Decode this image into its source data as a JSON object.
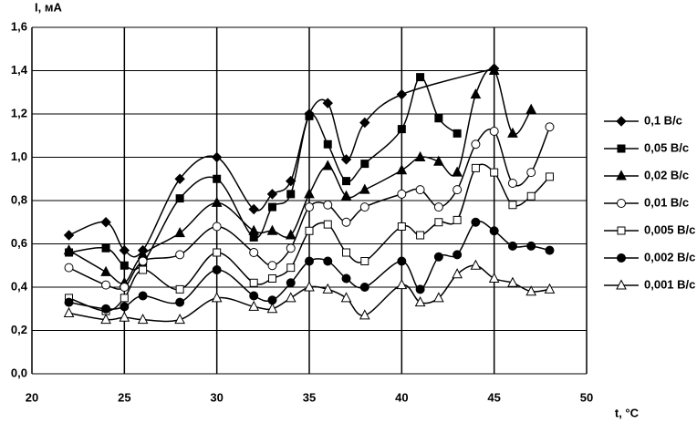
{
  "chart_data": {
    "type": "line",
    "ylabel": "I, мА",
    "xlabel": "t, °C",
    "xlim": [
      20,
      50
    ],
    "xticks": [
      20,
      25,
      30,
      35,
      40,
      45,
      50
    ],
    "ylim": [
      0,
      1.6
    ],
    "yticks": [
      {
        "value": 0,
        "label": "0,0"
      },
      {
        "value": 0.2,
        "label": "0,2"
      },
      {
        "value": 0.4,
        "label": "0,4"
      },
      {
        "value": 0.6,
        "label": "0,6"
      },
      {
        "value": 0.8,
        "label": "0,8"
      },
      {
        "value": 1.0,
        "label": "1,0"
      },
      {
        "value": 1.2,
        "label": "1,2"
      },
      {
        "value": 1.4,
        "label": "1,4"
      },
      {
        "value": 1.6,
        "label": "1,6"
      }
    ],
    "grid": true,
    "smooth": true,
    "legend": "right",
    "series": [
      {
        "name": "0,1 В/с",
        "color": "#000000",
        "marker": "diamond",
        "filled": true,
        "x": [
          22,
          24,
          25,
          26,
          28,
          30,
          32,
          33,
          34,
          35,
          36,
          37,
          38,
          40,
          45
        ],
        "values": [
          0.64,
          0.7,
          0.57,
          0.57,
          0.9,
          1.0,
          0.76,
          0.83,
          0.89,
          1.2,
          1.25,
          0.99,
          1.16,
          1.29,
          1.41
        ]
      },
      {
        "name": "0,05 В/с",
        "color": "#000000",
        "marker": "square",
        "filled": true,
        "x": [
          22,
          24,
          25,
          26,
          28,
          30,
          32,
          33,
          34,
          35,
          36,
          37,
          38,
          40,
          41,
          42,
          43
        ],
        "values": [
          0.56,
          0.58,
          0.5,
          0.51,
          0.81,
          0.9,
          0.63,
          0.77,
          0.83,
          1.19,
          1.06,
          0.89,
          0.97,
          1.13,
          1.37,
          1.18,
          1.11
        ]
      },
      {
        "name": "0,02 В/с",
        "color": "#000000",
        "marker": "triangle",
        "filled": true,
        "x": [
          22,
          24,
          25,
          26,
          28,
          30,
          32,
          33,
          34,
          35,
          36,
          37,
          38,
          40,
          41,
          42,
          43,
          44,
          45,
          46,
          47
        ],
        "values": [
          0.57,
          0.47,
          0.42,
          0.55,
          0.65,
          0.79,
          0.66,
          0.66,
          0.64,
          0.83,
          0.96,
          0.82,
          0.85,
          0.94,
          1.0,
          0.98,
          0.93,
          1.29,
          1.4,
          1.11,
          1.22
        ]
      },
      {
        "name": "0,01 В/с",
        "color": "#000000",
        "marker": "circle",
        "filled": false,
        "x": [
          22,
          24,
          25,
          26,
          28,
          30,
          32,
          33,
          34,
          35,
          36,
          37,
          38,
          40,
          41,
          42,
          43,
          44,
          45,
          46,
          47,
          48
        ],
        "values": [
          0.49,
          0.41,
          0.4,
          0.52,
          0.55,
          0.68,
          0.56,
          0.5,
          0.58,
          0.77,
          0.78,
          0.7,
          0.77,
          0.83,
          0.85,
          0.77,
          0.85,
          1.06,
          1.12,
          0.88,
          0.93,
          1.14
        ]
      },
      {
        "name": "0,005 В/с",
        "color": "#000000",
        "marker": "square",
        "filled": false,
        "x": [
          22,
          24,
          25,
          26,
          28,
          30,
          32,
          33,
          34,
          35,
          36,
          37,
          38,
          40,
          41,
          42,
          43,
          44,
          45,
          46,
          47,
          48
        ],
        "values": [
          0.35,
          0.29,
          0.35,
          0.48,
          0.39,
          0.56,
          0.42,
          0.44,
          0.49,
          0.66,
          0.69,
          0.56,
          0.52,
          0.68,
          0.64,
          0.7,
          0.71,
          0.95,
          0.93,
          0.78,
          0.82,
          0.91
        ]
      },
      {
        "name": "0,002 В/с",
        "color": "#000000",
        "marker": "circle",
        "filled": true,
        "x": [
          22,
          24,
          25,
          26,
          28,
          30,
          32,
          33,
          34,
          35,
          36,
          37,
          38,
          40,
          41,
          42,
          43,
          44,
          45,
          46,
          47,
          48
        ],
        "values": [
          0.33,
          0.3,
          0.31,
          0.36,
          0.33,
          0.48,
          0.36,
          0.34,
          0.42,
          0.52,
          0.52,
          0.44,
          0.4,
          0.52,
          0.39,
          0.54,
          0.55,
          0.7,
          0.66,
          0.59,
          0.59,
          0.57
        ]
      },
      {
        "name": "0,001 В/с",
        "color": "#000000",
        "marker": "triangle",
        "filled": false,
        "x": [
          22,
          24,
          25,
          26,
          28,
          30,
          32,
          33,
          34,
          35,
          36,
          37,
          38,
          40,
          41,
          42,
          43,
          44,
          45,
          46,
          47,
          48
        ],
        "values": [
          0.28,
          0.25,
          0.26,
          0.25,
          0.25,
          0.35,
          0.31,
          0.3,
          0.35,
          0.4,
          0.39,
          0.35,
          0.27,
          0.41,
          0.33,
          0.35,
          0.46,
          0.5,
          0.44,
          0.42,
          0.38,
          0.39
        ]
      }
    ]
  }
}
